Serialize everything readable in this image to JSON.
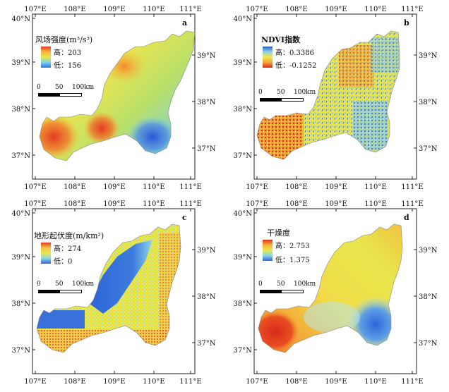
{
  "panels": [
    {
      "letter": "a",
      "legend": {
        "title": "风场强度(m³/s³)",
        "high_label": "高：",
        "high_value": "203",
        "low_label": "低：",
        "low_value": "156",
        "colors": [
          "#e63b22",
          "#f6b43c",
          "#e6e84a",
          "#7ed3e8",
          "#2f6fe0"
        ]
      },
      "scale": {
        "labels": [
          "0",
          "50",
          "100km"
        ]
      },
      "top_ticks": [
        "107°E",
        "108°E",
        "109°E",
        "110°E",
        "111°E"
      ],
      "bottom_ticks": [
        "107°E",
        "108°E",
        "109°E",
        "110°E",
        "111°E"
      ],
      "left_ticks": [
        "40°N",
        "39°N",
        "38°N",
        "37°N"
      ],
      "right_ticks": [
        "39°N",
        "38°N",
        "37°N"
      ]
    },
    {
      "letter": "b",
      "legend": {
        "title": "NDVI指数",
        "high_label": "高：",
        "high_value": "0.3386",
        "low_label": "低：",
        "low_value": "-0.1252",
        "colors": [
          "#2b5fd6",
          "#8fd0e0",
          "#f3e94a",
          "#f5a33a",
          "#d8261b"
        ]
      },
      "scale": {
        "labels": [
          "0",
          "50",
          "100km"
        ]
      },
      "top_ticks": [
        "107°E",
        "108°E",
        "109°E",
        "110°E",
        "111°E"
      ],
      "bottom_ticks": [
        "107°E",
        "108°E",
        "109°E",
        "110°E",
        "111°E"
      ],
      "left_ticks": [
        "40°N",
        "39°N",
        "38°N",
        "37°N"
      ],
      "right_ticks": [
        "39°N",
        "38°N",
        "37°N"
      ]
    },
    {
      "letter": "c",
      "legend": {
        "title": "地形起伏度(m/km²)",
        "high_label": "高：",
        "high_value": "274",
        "low_label": "低：",
        "low_value": "0",
        "colors": [
          "#e03b20",
          "#f6c04a",
          "#e6e84a",
          "#8ed6ea",
          "#2f63d8"
        ]
      },
      "scale": {
        "labels": [
          "0",
          "50",
          "100km"
        ]
      },
      "top_ticks": [
        "107°E",
        "108°E",
        "109°E",
        "110°E",
        "111°E"
      ],
      "bottom_ticks": [
        "107°E",
        "108°E",
        "109°E",
        "110°E",
        "111°E"
      ],
      "left_ticks": [
        "40°N",
        "39°N",
        "38°N",
        "37°N"
      ],
      "right_ticks": [
        "39°N",
        "38°N",
        "37°N"
      ]
    },
    {
      "letter": "d",
      "legend": {
        "title": "干燥度",
        "high_label": "高：",
        "high_value": "2.753",
        "low_label": "低：",
        "low_value": "1.375",
        "colors": [
          "#e0301e",
          "#f5b23a",
          "#e6e84a",
          "#86d3e8",
          "#2f66dc"
        ]
      },
      "scale": {
        "labels": [
          "0",
          "50",
          "100km"
        ]
      },
      "top_ticks": [
        "107°E",
        "108°E",
        "109°E",
        "110°E",
        "111°E"
      ],
      "bottom_ticks": [
        "107°E",
        "108°E",
        "109°E",
        "110°E",
        "111°E"
      ],
      "left_ticks": [
        "40°N",
        "39°N",
        "38°N",
        "37°N"
      ],
      "right_ticks": [
        "39°N",
        "38°N",
        "37°N"
      ]
    }
  ]
}
